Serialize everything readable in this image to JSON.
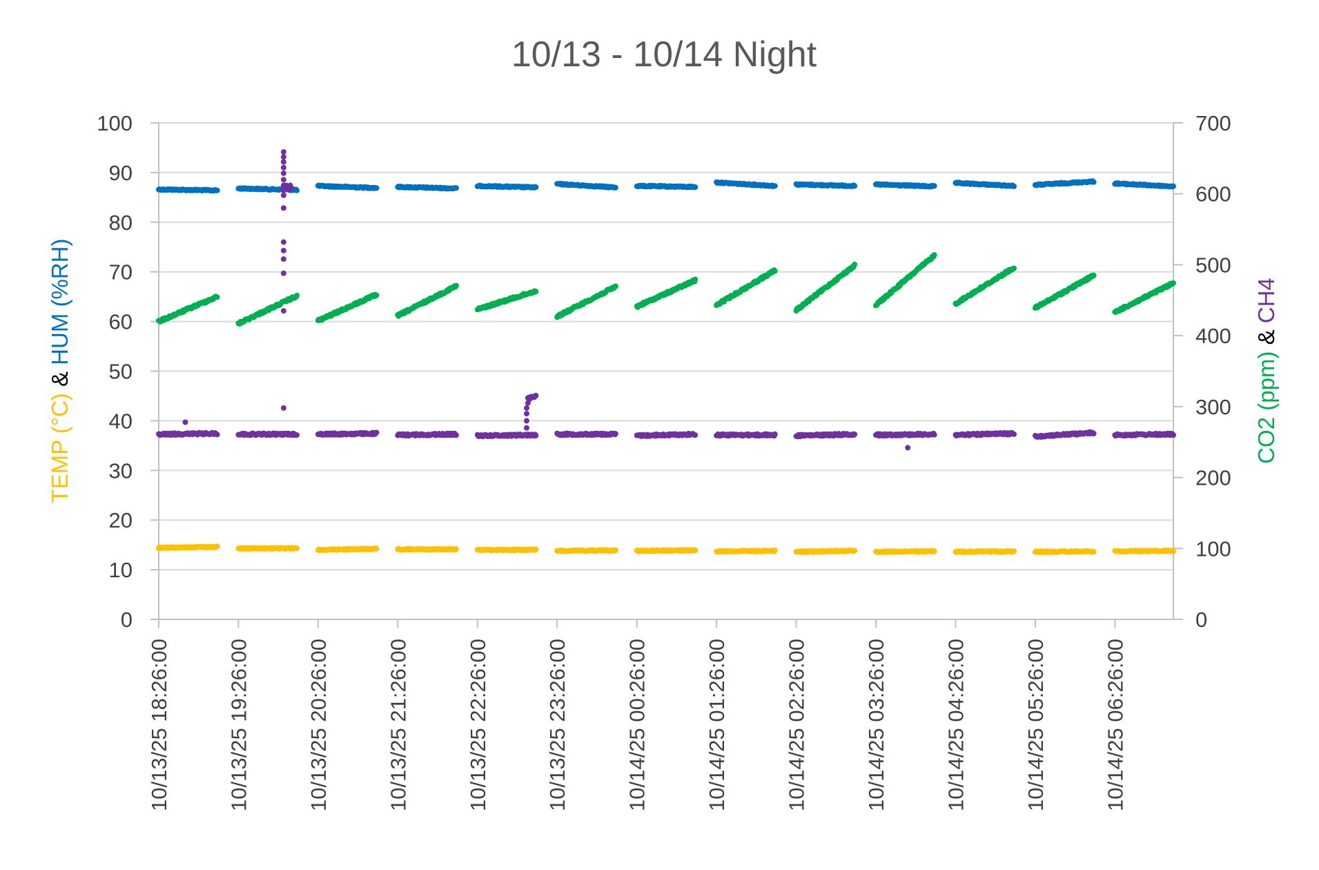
{
  "chart_data": {
    "type": "scatter",
    "title": "10/13 - 10/14 Night",
    "y_left": {
      "label_parts": [
        {
          "text": "TEMP (°C)",
          "color": "#FFC000"
        },
        {
          "text": " & ",
          "color": "#000000"
        },
        {
          "text": "HUM (%RH)",
          "color": "#0070C0"
        }
      ],
      "range": [
        0,
        100
      ],
      "ticks": [
        "0",
        "10",
        "20",
        "30",
        "40",
        "50",
        "60",
        "70",
        "80",
        "90",
        "100"
      ]
    },
    "y_right": {
      "label_parts": [
        {
          "text": "CO2 (ppm)",
          "color": "#00B050"
        },
        {
          "text": " & ",
          "color": "#000000"
        },
        {
          "text": "CH4",
          "color": "#7030A0"
        }
      ],
      "range": [
        0,
        700
      ],
      "ticks": [
        "0",
        "100",
        "200",
        "300",
        "400",
        "500",
        "600",
        "700"
      ]
    },
    "x_axis": {
      "range": [
        "10/13/25 18:26:00",
        "10/14/25 07:10:00"
      ],
      "tick_labels": [
        "10/13/25 18:26:00",
        "10/13/25 19:26:00",
        "10/13/25 20:26:00",
        "10/13/25 21:26:00",
        "10/13/25 22:26:00",
        "10/13/25 23:26:00",
        "10/14/25 00:26:00",
        "10/14/25 01:26:00",
        "10/14/25 02:26:00",
        "10/14/25 03:26:00",
        "10/14/25 04:26:00",
        "10/14/25 05:26:00",
        "10/14/25 06:26:00"
      ]
    },
    "grid": true,
    "legend": "none",
    "series": [
      {
        "key": "humidity",
        "axis": "left",
        "color": "#0070C0",
        "segments": [
          {
            "start": "10/13/25 18:26:00",
            "end": "10/13/25 19:10:00",
            "from": 86.6,
            "to": 86.4
          },
          {
            "start": "10/13/25 19:26:00",
            "end": "10/13/25 20:10:00",
            "from": 86.8,
            "to": 86.5
          },
          {
            "start": "10/13/25 20:26:00",
            "end": "10/13/25 21:10:00",
            "from": 87.3,
            "to": 86.9
          },
          {
            "start": "10/13/25 21:26:00",
            "end": "10/13/25 22:10:00",
            "from": 87.1,
            "to": 86.8
          },
          {
            "start": "10/13/25 22:26:00",
            "end": "10/13/25 23:10:00",
            "from": 87.3,
            "to": 87.0
          },
          {
            "start": "10/13/25 23:26:00",
            "end": "10/14/25 00:10:00",
            "from": 87.7,
            "to": 87.0
          },
          {
            "start": "10/14/25 00:26:00",
            "end": "10/14/25 01:10:00",
            "from": 87.3,
            "to": 87.1
          },
          {
            "start": "10/14/25 01:26:00",
            "end": "10/14/25 02:10:00",
            "from": 88.0,
            "to": 87.3
          },
          {
            "start": "10/14/25 02:26:00",
            "end": "10/14/25 03:10:00",
            "from": 87.6,
            "to": 87.3
          },
          {
            "start": "10/14/25 03:26:00",
            "end": "10/14/25 04:10:00",
            "from": 87.6,
            "to": 87.2
          },
          {
            "start": "10/14/25 04:26:00",
            "end": "10/14/25 05:10:00",
            "from": 87.9,
            "to": 87.3
          },
          {
            "start": "10/14/25 05:26:00",
            "end": "10/14/25 06:10:00",
            "from": 87.5,
            "to": 88.2
          },
          {
            "start": "10/14/25 06:26:00",
            "end": "10/14/25 07:10:00",
            "from": 87.8,
            "to": 87.2
          }
        ]
      },
      {
        "key": "co2",
        "axis": "right",
        "color": "#00B050",
        "segments": [
          {
            "start": "10/13/25 18:26:00",
            "end": "10/13/25 19:10:00",
            "from": 420,
            "to": 455
          },
          {
            "start": "10/13/25 19:26:00",
            "end": "10/13/25 20:10:00",
            "from": 417,
            "to": 456
          },
          {
            "start": "10/13/25 20:26:00",
            "end": "10/13/25 21:10:00",
            "from": 421,
            "to": 458
          },
          {
            "start": "10/13/25 21:26:00",
            "end": "10/13/25 22:10:00",
            "from": 428,
            "to": 470
          },
          {
            "start": "10/13/25 22:26:00",
            "end": "10/13/25 23:10:00",
            "from": 437,
            "to": 463
          },
          {
            "start": "10/13/25 23:26:00",
            "end": "10/14/25 00:10:00",
            "from": 427,
            "to": 469
          },
          {
            "start": "10/14/25 00:26:00",
            "end": "10/14/25 01:10:00",
            "from": 441,
            "to": 478
          },
          {
            "start": "10/14/25 01:26:00",
            "end": "10/14/25 02:10:00",
            "from": 443,
            "to": 492
          },
          {
            "start": "10/14/25 02:26:00",
            "end": "10/14/25 03:10:00",
            "from": 436,
            "to": 499
          },
          {
            "start": "10/14/25 03:26:00",
            "end": "10/14/25 04:10:00",
            "from": 443,
            "to": 513
          },
          {
            "start": "10/14/25 04:26:00",
            "end": "10/14/25 05:10:00",
            "from": 445,
            "to": 496
          },
          {
            "start": "10/14/25 05:26:00",
            "end": "10/14/25 06:10:00",
            "from": 439,
            "to": 485
          },
          {
            "start": "10/14/25 06:26:00",
            "end": "10/14/25 07:10:00",
            "from": 433,
            "to": 474
          }
        ]
      },
      {
        "key": "ch4",
        "axis": "right",
        "color": "#7030A0",
        "segments": [
          {
            "start": "10/13/25 18:26:00",
            "end": "10/13/25 19:10:00",
            "from": 261,
            "to": 262
          },
          {
            "start": "10/13/25 19:26:00",
            "end": "10/13/25 20:10:00",
            "from": 261,
            "to": 261
          },
          {
            "start": "10/13/25 20:26:00",
            "end": "10/13/25 21:10:00",
            "from": 261,
            "to": 262
          },
          {
            "start": "10/13/25 21:26:00",
            "end": "10/13/25 22:10:00",
            "from": 260,
            "to": 261
          },
          {
            "start": "10/13/25 22:26:00",
            "end": "10/13/25 23:10:00",
            "from": 259,
            "to": 260
          },
          {
            "start": "10/13/25 23:26:00",
            "end": "10/14/25 00:10:00",
            "from": 261,
            "to": 261
          },
          {
            "start": "10/14/25 00:26:00",
            "end": "10/14/25 01:10:00",
            "from": 259,
            "to": 261
          },
          {
            "start": "10/14/25 01:26:00",
            "end": "10/14/25 02:10:00",
            "from": 260,
            "to": 260
          },
          {
            "start": "10/14/25 02:26:00",
            "end": "10/14/25 03:10:00",
            "from": 259,
            "to": 261
          },
          {
            "start": "10/14/25 03:26:00",
            "end": "10/14/25 04:10:00",
            "from": 260,
            "to": 261
          },
          {
            "start": "10/14/25 04:26:00",
            "end": "10/14/25 05:10:00",
            "from": 260,
            "to": 262
          },
          {
            "start": "10/14/25 05:26:00",
            "end": "10/14/25 06:10:00",
            "from": 258,
            "to": 263
          },
          {
            "start": "10/14/25 06:26:00",
            "end": "10/14/25 07:10:00",
            "from": 260,
            "to": 261
          }
        ],
        "points": [
          {
            "x": "10/13/25 18:46:00",
            "y": 278
          },
          {
            "x": "10/13/25 20:00:00",
            "y": 659
          },
          {
            "x": "10/13/25 20:00:00",
            "y": 652
          },
          {
            "x": "10/13/25 20:00:00",
            "y": 645
          },
          {
            "x": "10/13/25 20:00:00",
            "y": 637
          },
          {
            "x": "10/13/25 20:00:00",
            "y": 629
          },
          {
            "x": "10/13/25 20:00:00",
            "y": 620
          },
          {
            "x": "10/13/25 20:00:00",
            "y": 612
          },
          {
            "x": "10/13/25 20:00:00",
            "y": 605
          },
          {
            "x": "10/13/25 20:00:00",
            "y": 598
          },
          {
            "x": "10/13/25 20:00:00",
            "y": 580
          },
          {
            "x": "10/13/25 20:00:00",
            "y": 532
          },
          {
            "x": "10/13/25 20:00:00",
            "y": 520
          },
          {
            "x": "10/13/25 20:00:00",
            "y": 508
          },
          {
            "x": "10/13/25 20:00:00",
            "y": 488
          },
          {
            "x": "10/13/25 20:00:00",
            "y": 435
          },
          {
            "x": "10/13/25 20:00:00",
            "y": 298
          },
          {
            "x": "10/13/25 20:02:00",
            "y": 612
          },
          {
            "x": "10/13/25 20:04:00",
            "y": 606
          },
          {
            "x": "10/13/25 20:05:00",
            "y": 612
          },
          {
            "x": "10/13/25 20:06:00",
            "y": 608
          },
          {
            "x": "10/14/25 03:50:00",
            "y": 242
          },
          {
            "x": "10/13/25 23:03:00",
            "y": 270
          },
          {
            "x": "10/13/25 23:03:00",
            "y": 280
          },
          {
            "x": "10/13/25 23:03:00",
            "y": 290
          },
          {
            "x": "10/13/25 23:03:00",
            "y": 298
          },
          {
            "x": "10/13/25 23:04:00",
            "y": 305
          },
          {
            "x": "10/13/25 23:05:00",
            "y": 310
          }
        ],
        "plateau": {
          "start": "10/13/25 23:04:00",
          "end": "10/13/25 23:10:00",
          "from": 311,
          "to": 315
        }
      },
      {
        "key": "temperature",
        "axis": "left",
        "color": "#FFC000",
        "segments": [
          {
            "start": "10/13/25 18:26:00",
            "end": "10/13/25 19:10:00",
            "from": 14.4,
            "to": 14.6
          },
          {
            "start": "10/13/25 19:26:00",
            "end": "10/13/25 20:10:00",
            "from": 14.3,
            "to": 14.3
          },
          {
            "start": "10/13/25 20:26:00",
            "end": "10/13/25 21:10:00",
            "from": 14.0,
            "to": 14.2
          },
          {
            "start": "10/13/25 21:26:00",
            "end": "10/13/25 22:10:00",
            "from": 14.1,
            "to": 14.1
          },
          {
            "start": "10/13/25 22:26:00",
            "end": "10/13/25 23:10:00",
            "from": 14.0,
            "to": 14.0
          },
          {
            "start": "10/13/25 23:26:00",
            "end": "10/14/25 00:10:00",
            "from": 13.8,
            "to": 13.9
          },
          {
            "start": "10/14/25 00:26:00",
            "end": "10/14/25 01:10:00",
            "from": 13.8,
            "to": 13.9
          },
          {
            "start": "10/14/25 01:26:00",
            "end": "10/14/25 02:10:00",
            "from": 13.7,
            "to": 13.8
          },
          {
            "start": "10/14/25 02:26:00",
            "end": "10/14/25 03:10:00",
            "from": 13.6,
            "to": 13.8
          },
          {
            "start": "10/14/25 03:26:00",
            "end": "10/14/25 04:10:00",
            "from": 13.6,
            "to": 13.7
          },
          {
            "start": "10/14/25 04:26:00",
            "end": "10/14/25 05:10:00",
            "from": 13.6,
            "to": 13.7
          },
          {
            "start": "10/14/25 05:26:00",
            "end": "10/14/25 06:10:00",
            "from": 13.6,
            "to": 13.7
          },
          {
            "start": "10/14/25 06:26:00",
            "end": "10/14/25 07:10:00",
            "from": 13.7,
            "to": 13.8
          }
        ]
      }
    ]
  }
}
